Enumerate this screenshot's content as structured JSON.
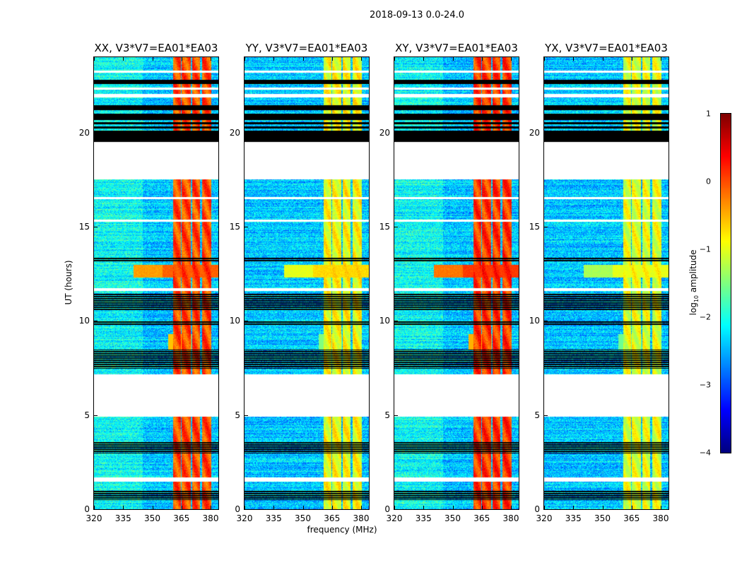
{
  "chart_data": {
    "type": "heatmap",
    "title": "2018-09-13 0.0-24.0",
    "xlabel": "frequency (MHz)",
    "ylabel": "UT (hours)",
    "xlim": [
      320,
      384
    ],
    "ylim": [
      0,
      24
    ],
    "xticks": [
      "320",
      "335",
      "350",
      "365",
      "380"
    ],
    "yticks": [
      "0",
      "5",
      "10",
      "15",
      "20"
    ],
    "panels": [
      {
        "title": "XX, V3*V7=EA01*EA03",
        "band_level": 0.0,
        "event_level": -0.4
      },
      {
        "title": "YY, V3*V7=EA01*EA03",
        "band_level": -0.9,
        "event_level": -1.0
      },
      {
        "title": "XY, V3*V7=EA01*EA03",
        "band_level": 0.1,
        "event_level": -0.2
      },
      {
        "title": "YX, V3*V7=EA01*EA03",
        "band_level": -1.0,
        "event_level": -1.3
      }
    ],
    "rfi_bands_mhz": [
      [
        360.5,
        364.5
      ],
      [
        365,
        369.5
      ],
      [
        370.5,
        374.5
      ],
      [
        375.5,
        380
      ]
    ],
    "flagged_hours_white": [
      [
        4.95,
        7.2
      ],
      [
        17.55,
        19.5
      ],
      [
        21.9,
        22.05
      ],
      [
        22.3,
        22.4
      ],
      [
        23.2,
        23.3
      ],
      [
        1.5,
        1.7
      ],
      [
        15.3,
        15.4
      ],
      [
        16.5,
        16.6
      ],
      [
        11.6,
        11.75
      ]
    ],
    "flagged_hours_black": [
      [
        19.5,
        20.1
      ],
      [
        20.25,
        20.35
      ],
      [
        20.45,
        20.55
      ],
      [
        20.7,
        21.0
      ],
      [
        21.2,
        21.45
      ],
      [
        10.6,
        11.5
      ],
      [
        7.5,
        8.5
      ],
      [
        3.0,
        3.6
      ],
      [
        0.5,
        1.0
      ],
      [
        9.8,
        10.0
      ],
      [
        13.2,
        13.4
      ],
      [
        22.6,
        22.8
      ]
    ],
    "colorbar": {
      "label": "log10 amplitude",
      "label_main": "log",
      "label_sub": "10",
      "label_rest": " amplitude",
      "range": [
        -4,
        1
      ],
      "ticks": [
        "1",
        "0",
        "−1",
        "−2",
        "−3",
        "−4"
      ],
      "colormap": "jet"
    }
  }
}
